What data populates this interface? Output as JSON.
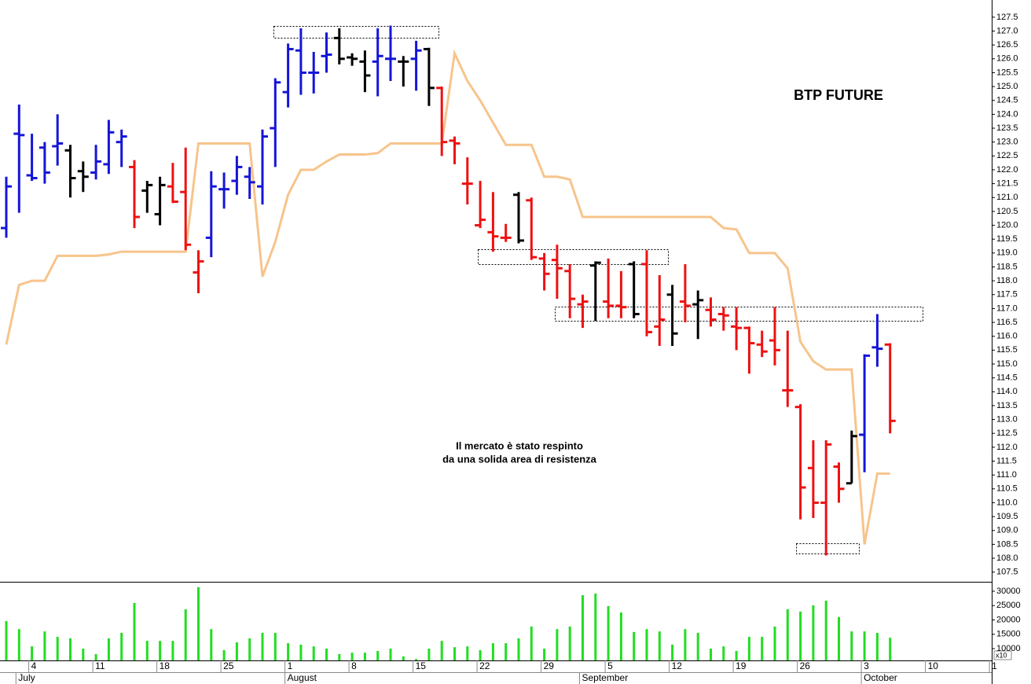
{
  "chart_data": {
    "type": "ohlc",
    "title": "BTP FUTURE",
    "annotation": [
      "Il mercato è stato respinto",
      "da una solida area di resistenza"
    ],
    "categories": [
      null,
      null,
      "4",
      null,
      null,
      null,
      null,
      "11",
      null,
      null,
      null,
      null,
      "18",
      null,
      null,
      null,
      null,
      "25",
      null,
      null,
      null,
      null,
      "1",
      null,
      null,
      null,
      null,
      "8",
      null,
      null,
      null,
      null,
      "15",
      null,
      null,
      null,
      null,
      "22",
      null,
      null,
      null,
      null,
      "29",
      null,
      null,
      null,
      null,
      "5",
      null,
      null,
      null,
      null,
      "12",
      null,
      null,
      null,
      null,
      "19",
      null,
      null,
      null,
      null,
      "26",
      null,
      null,
      null,
      null,
      "3",
      null,
      null,
      null,
      null,
      "10",
      null,
      null,
      null,
      null,
      "1"
    ],
    "months": [
      null,
      "July",
      null,
      null,
      null,
      null,
      null,
      null,
      null,
      null,
      null,
      null,
      null,
      null,
      null,
      null,
      null,
      null,
      null,
      null,
      null,
      null,
      "August",
      null,
      null,
      null,
      null,
      null,
      null,
      null,
      null,
      null,
      null,
      null,
      null,
      null,
      null,
      null,
      null,
      null,
      null,
      null,
      null,
      null,
      null,
      "September",
      null,
      null,
      null,
      null,
      null,
      null,
      null,
      null,
      null,
      null,
      null,
      null,
      null,
      null,
      null,
      null,
      null,
      null,
      null,
      null,
      null,
      "October",
      null,
      null,
      null,
      null,
      null,
      null,
      null,
      null,
      null,
      null
    ],
    "open": [
      119.9,
      123.3,
      121.8,
      122.8,
      122.85,
      122.7,
      121.95,
      121.9,
      122.2,
      123.0,
      122.1,
      121.25,
      120.4,
      121.4,
      121.2,
      118.3,
      119.55,
      121.3,
      121.6,
      121.75,
      121.4,
      123.5,
      124.8,
      126.3,
      125.5,
      126.1,
      126.75,
      126.05,
      125.9,
      125.9,
      126.0,
      125.9,
      126.0,
      126.35,
      124.95,
      123.05,
      121.5,
      120.0,
      119.75,
      119.55,
      121.1,
      120.9,
      118.8,
      118.75,
      118.35,
      117.15,
      118.55,
      117.25,
      117.1,
      118.6,
      118.6,
      116.35,
      117.5,
      117.25,
      117.15,
      116.95,
      116.8,
      116.35,
      116.3,
      115.7,
      115.85,
      114.05,
      113.45,
      111.25,
      110.0,
      111.3,
      110.7,
      112.45,
      115.6,
      115.7,
      null,
      null,
      null,
      null,
      null,
      null,
      null,
      null
    ],
    "high": [
      121.75,
      124.35,
      123.3,
      123.0,
      124.0,
      122.9,
      122.3,
      122.9,
      123.8,
      123.45,
      122.35,
      121.6,
      121.75,
      122.25,
      122.8,
      119.1,
      121.95,
      121.9,
      122.5,
      122.1,
      123.45,
      125.3,
      126.55,
      127.1,
      126.25,
      126.95,
      127.1,
      126.2,
      126.3,
      127.1,
      127.2,
      126.1,
      126.65,
      126.4,
      125.0,
      123.2,
      122.45,
      121.6,
      121.2,
      120.05,
      121.2,
      121.0,
      119.0,
      119.3,
      118.6,
      117.5,
      118.7,
      118.8,
      118.35,
      118.7,
      119.1,
      118.2,
      117.85,
      118.6,
      117.65,
      117.4,
      117.05,
      117.05,
      116.35,
      116.2,
      117.05,
      116.2,
      113.55,
      112.25,
      112.25,
      111.45,
      112.6,
      115.35,
      116.8,
      115.75,
      null,
      null,
      null,
      null,
      null,
      null,
      null,
      null
    ],
    "low": [
      119.55,
      120.45,
      121.6,
      121.5,
      122.15,
      121.0,
      121.2,
      121.65,
      121.85,
      122.1,
      119.9,
      120.45,
      120.0,
      120.8,
      119.1,
      117.55,
      118.85,
      120.6,
      121.1,
      120.95,
      120.75,
      122.1,
      124.25,
      124.7,
      124.75,
      125.5,
      125.8,
      125.75,
      124.8,
      124.65,
      125.2,
      125.0,
      124.85,
      124.3,
      122.5,
      122.2,
      120.75,
      119.9,
      119.05,
      119.4,
      119.35,
      118.75,
      117.65,
      117.35,
      116.65,
      116.3,
      116.55,
      116.65,
      116.65,
      116.65,
      116.0,
      115.65,
      115.65,
      116.5,
      115.9,
      116.35,
      116.2,
      115.5,
      114.65,
      115.25,
      114.95,
      113.45,
      109.4,
      109.45,
      108.1,
      110.0,
      110.7,
      111.1,
      114.9,
      112.5,
      null,
      null,
      null,
      null,
      null,
      null,
      null,
      null
    ],
    "close": [
      121.4,
      123.25,
      121.7,
      121.9,
      122.95,
      121.7,
      121.75,
      122.3,
      123.35,
      123.2,
      120.3,
      121.45,
      121.45,
      120.85,
      119.3,
      118.7,
      121.4,
      121.3,
      122.1,
      121.55,
      123.2,
      125.15,
      126.35,
      125.5,
      125.5,
      126.15,
      126.0,
      126.0,
      125.4,
      126.1,
      126.0,
      125.9,
      126.3,
      124.95,
      123.0,
      122.95,
      121.5,
      120.2,
      119.6,
      119.55,
      119.45,
      118.85,
      118.25,
      118.45,
      117.35,
      117.25,
      118.65,
      117.1,
      117.05,
      116.8,
      116.15,
      116.6,
      116.1,
      117.1,
      117.3,
      116.6,
      116.75,
      116.3,
      115.75,
      115.45,
      115.5,
      114.05,
      110.55,
      110.0,
      112.1,
      110.5,
      112.4,
      115.3,
      115.55,
      112.95,
      null,
      null,
      null,
      null,
      null,
      null,
      null,
      null
    ],
    "bar_colors": [
      "#1515d8",
      "#1515d8",
      "#1515d8",
      "#1515d8",
      "#1515d8",
      "#000000",
      "#000000",
      "#1515d8",
      "#1515d8",
      "#1515d8",
      "#ee1111",
      "#000000",
      "#000000",
      "#ee1111",
      "#ee1111",
      "#ee1111",
      "#1515d8",
      "#1515d8",
      "#1515d8",
      "#1515d8",
      "#1515d8",
      "#1515d8",
      "#1515d8",
      "#1515d8",
      "#1515d8",
      "#1515d8",
      "#000000",
      "#000000",
      "#000000",
      "#1515d8",
      "#1515d8",
      "#000000",
      "#1515d8",
      "#000000",
      "#ee1111",
      "#ee1111",
      "#ee1111",
      "#ee1111",
      "#ee1111",
      "#ee1111",
      "#000000",
      "#ee1111",
      "#ee1111",
      "#ee1111",
      "#ee1111",
      "#ee1111",
      "#000000",
      "#ee1111",
      "#ee1111",
      "#000000",
      "#ee1111",
      "#ee1111",
      "#000000",
      "#ee1111",
      "#000000",
      "#ee1111",
      "#ee1111",
      "#ee1111",
      "#ee1111",
      "#ee1111",
      "#ee1111",
      "#ee1111",
      "#ee1111",
      "#ee1111",
      "#ee1111",
      "#ee1111",
      "#000000",
      "#1515d8",
      "#1515d8",
      "#ee1111",
      null,
      null,
      null,
      null,
      null,
      null,
      null,
      null
    ],
    "line": {
      "color": "#f7c48c",
      "values": [
        115.7,
        117.85,
        118.0,
        118.0,
        118.9,
        118.9,
        118.9,
        118.9,
        118.95,
        119.05,
        119.05,
        119.05,
        119.05,
        119.05,
        119.05,
        122.95,
        122.95,
        122.95,
        122.95,
        122.95,
        118.15,
        119.4,
        121.1,
        122.0,
        122.0,
        122.3,
        122.55,
        122.55,
        122.55,
        122.6,
        122.95,
        122.95,
        122.95,
        122.95,
        122.95,
        126.2,
        125.2,
        124.5,
        123.7,
        122.9,
        122.9,
        122.9,
        121.75,
        121.75,
        121.65,
        120.3,
        120.3,
        120.3,
        120.3,
        120.3,
        120.3,
        120.3,
        120.3,
        120.3,
        120.3,
        120.3,
        119.9,
        119.85,
        119.0,
        119.0,
        119.0,
        118.45,
        115.8,
        115.1,
        114.8,
        114.8,
        114.8,
        108.5,
        111.05,
        111.05,
        null,
        null,
        null,
        null,
        null,
        null,
        null,
        null
      ]
    },
    "volume": {
      "color": "#22dd22",
      "values": [
        19600,
        16800,
        10800,
        16000,
        14100,
        13600,
        10000,
        8100,
        13600,
        15500,
        25900,
        12700,
        12700,
        12700,
        23700,
        31400,
        16800,
        9500,
        12200,
        13600,
        15500,
        15500,
        11900,
        11400,
        10800,
        10000,
        8100,
        8600,
        8600,
        9200,
        10000,
        7300,
        6400,
        10000,
        12700,
        10500,
        10800,
        9500,
        11900,
        11900,
        13600,
        17700,
        10000,
        16800,
        17700,
        28600,
        29200,
        24800,
        22600,
        15800,
        16800,
        16000,
        11400,
        16800,
        15500,
        10000,
        10800,
        9200,
        14100,
        14100,
        17700,
        23700,
        22900,
        25100,
        26700,
        21000,
        16000,
        16000,
        15500,
        13800,
        null,
        null,
        null,
        null,
        null,
        null,
        null,
        null
      ],
      "ylim": [
        5900,
        33000
      ],
      "yticks": [
        10000,
        15000,
        20000,
        25000,
        30000
      ],
      "unit_label": "x10"
    },
    "ylim": [
      107.15,
      128.12
    ],
    "yticks": [
      107.5,
      {
        "value": 108,
        "label": "108.0"
      },
      108.5,
      {
        "value": 109,
        "label": "109.0"
      },
      109.5,
      {
        "value": 110,
        "label": "110.0"
      },
      110.5,
      {
        "value": 111,
        "label": "111.0"
      },
      111.5,
      {
        "value": 112,
        "label": "112.0"
      },
      112.5,
      {
        "value": 113,
        "label": "113.0"
      },
      113.5,
      {
        "value": 114,
        "label": "114.0"
      },
      114.5,
      {
        "value": 115,
        "label": "115.0"
      },
      115.5,
      {
        "value": 116,
        "label": "116.0"
      },
      116.5,
      {
        "value": 117,
        "label": "117.0"
      },
      117.5,
      {
        "value": 118,
        "label": "118.0"
      },
      118.5,
      {
        "value": 119,
        "label": "119.0"
      },
      119.5,
      {
        "value": 120,
        "label": "120.0"
      },
      120.5,
      {
        "value": 121,
        "label": "121.0"
      },
      121.5,
      {
        "value": 122,
        "label": "122.0"
      },
      122.5,
      {
        "value": 123,
        "label": "123.0"
      },
      123.5,
      {
        "value": 124,
        "label": "124.0"
      },
      124.5,
      {
        "value": 125,
        "label": "125.0"
      },
      125.5,
      {
        "value": 126,
        "label": "126.0"
      },
      126.5,
      {
        "value": 127,
        "label": "127.0"
      },
      127.5
    ]
  }
}
